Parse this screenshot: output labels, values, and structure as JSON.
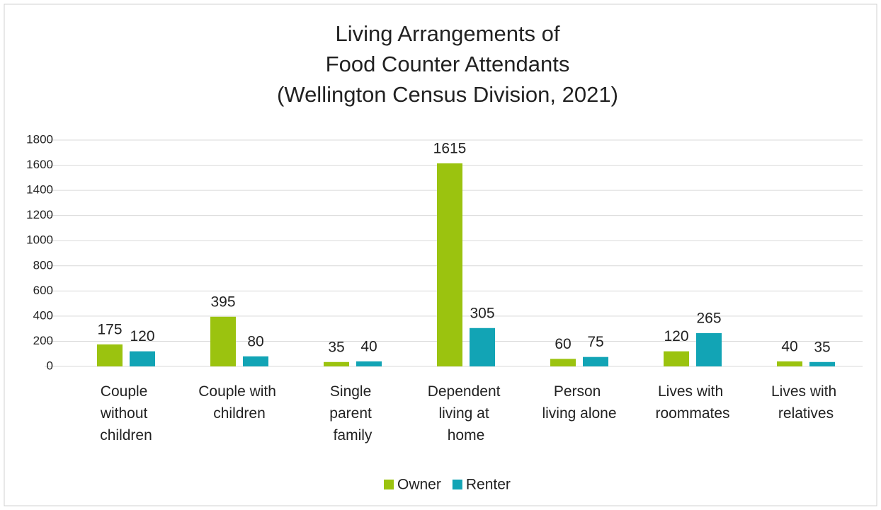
{
  "chart_data": {
    "type": "bar",
    "title": [
      "Living Arrangements of",
      "Food Counter Attendants",
      "(Wellington Census Division, 2021)"
    ],
    "categories": [
      "Couple without children",
      "Couple with children",
      "Single parent family",
      "Dependent living at home",
      "Person living alone",
      "Lives with roommates",
      "Lives with relatives"
    ],
    "series": [
      {
        "name": "Owner",
        "color": "#9bc30f",
        "values": [
          175,
          395,
          35,
          1615,
          60,
          120,
          40
        ]
      },
      {
        "name": "Renter",
        "color": "#12a4b5",
        "values": [
          120,
          80,
          40,
          305,
          75,
          265,
          35
        ]
      }
    ],
    "ylim": [
      0,
      1800
    ],
    "yticks": [
      0,
      200,
      400,
      600,
      800,
      1000,
      1200,
      1400,
      1600,
      1800
    ],
    "grid": true,
    "legend": "bottom"
  }
}
